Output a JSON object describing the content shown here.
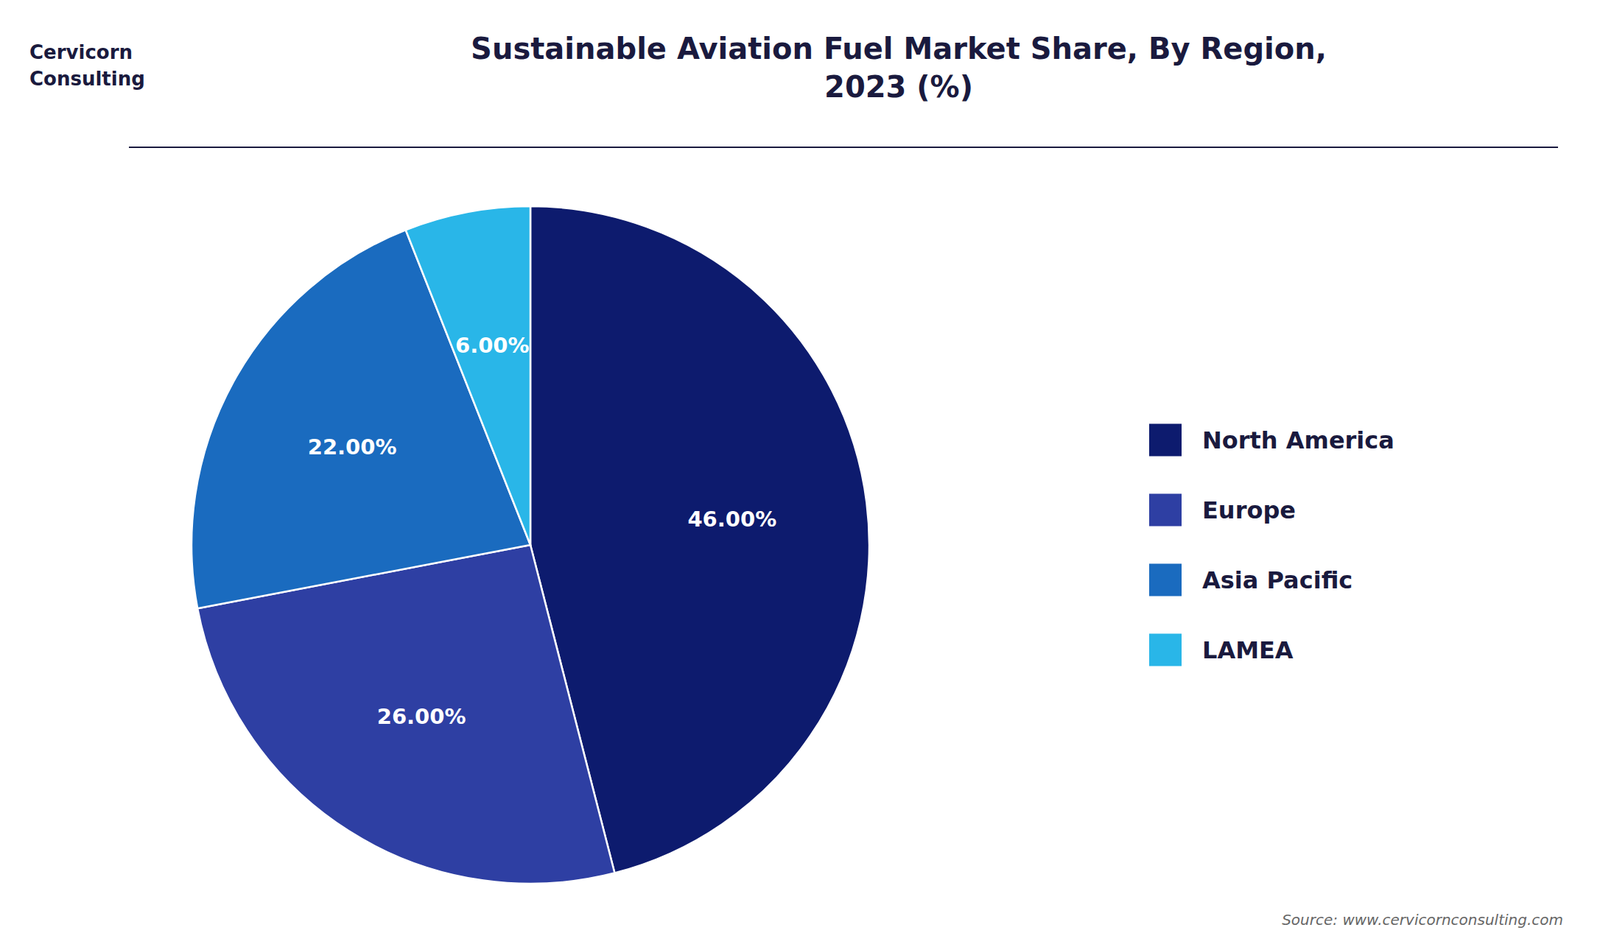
{
  "chart_data": {
    "type": "pie",
    "title": "Sustainable Aviation Fuel Market Share, By Region,\n2023 (%)",
    "categories": [
      "North America",
      "Europe",
      "Asia Pacific",
      "LAMEA"
    ],
    "values": [
      46.0,
      26.0,
      22.0,
      6.0
    ],
    "value_labels": [
      "46.00%",
      "26.00%",
      "22.00%",
      "6.00%"
    ],
    "colors": [
      "#0d1b6e",
      "#2e3fa3",
      "#1a6bbf",
      "#29b6e8"
    ],
    "data_labels": true,
    "legend": "right",
    "annotations": [
      "Cervicorn\nConsulting",
      "Source: www.cervicornconsulting.com"
    ]
  }
}
